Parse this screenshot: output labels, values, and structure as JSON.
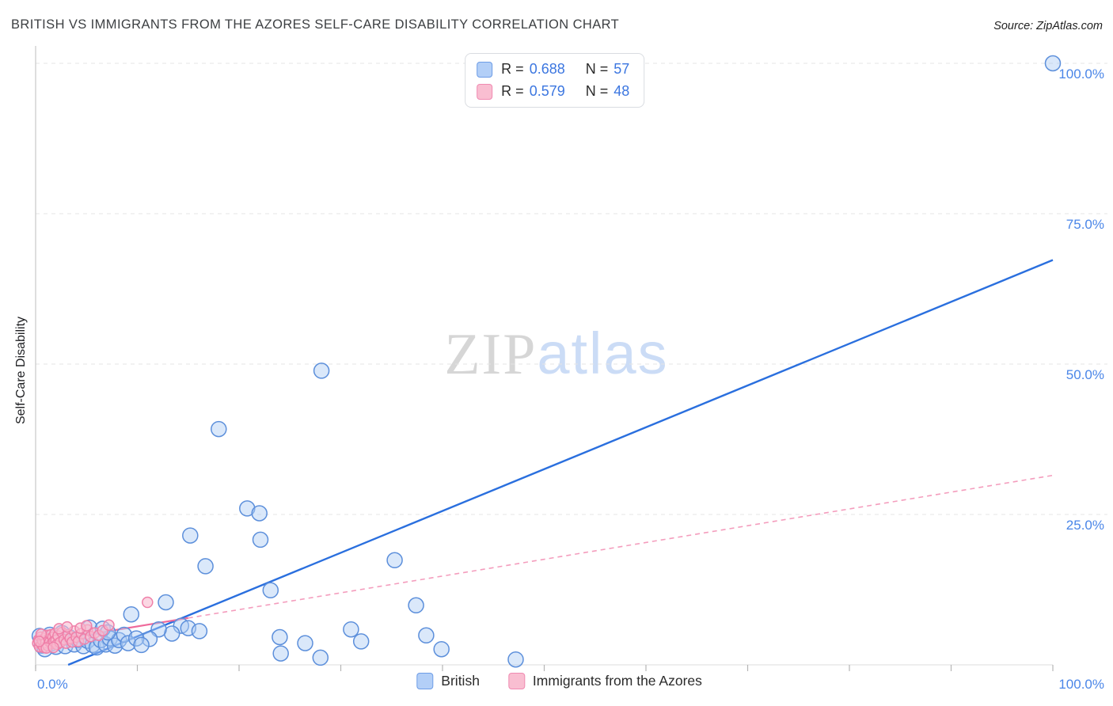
{
  "header": {
    "title": "BRITISH VS IMMIGRANTS FROM THE AZORES SELF-CARE DISABILITY CORRELATION CHART",
    "source": "Source: ZipAtlas.com"
  },
  "watermark": {
    "part1": "ZIP",
    "part2": "atlas"
  },
  "axes": {
    "y_title": "Self-Care Disability"
  },
  "legend_box": {
    "rows": [
      {
        "series": "British",
        "r_label": "R =",
        "r_value": "0.688",
        "n_label": "N =",
        "n_value": "57"
      },
      {
        "series": "Immigrants from the Azores",
        "r_label": "R =",
        "r_value": "0.579",
        "n_label": "N =",
        "n_value": "48"
      }
    ]
  },
  "bottom_legend": {
    "items": [
      {
        "label": "British"
      },
      {
        "label": "Immigrants from the Azores"
      }
    ]
  },
  "colors": {
    "accent_blue": "#3b76e0",
    "tick_blue": "#4a86e8",
    "british_fill": "#aecbf4",
    "british_stroke": "#5c8fdb",
    "british_line": "#2a6fde",
    "azores_fill": "#f9bcd0",
    "azores_stroke": "#ef7fa8",
    "azores_line": "#ef6a9b"
  },
  "chart_data": {
    "type": "scatter",
    "title": "BRITISH VS IMMIGRANTS FROM THE AZORES SELF-CARE DISABILITY CORRELATION CHART",
    "xlabel": "",
    "ylabel": "Self-Care Disability",
    "xlim": [
      0,
      100
    ],
    "ylim": [
      0,
      100
    ],
    "grid": true,
    "legend_position": "bottom",
    "x_tick_labels": [
      "0.0%",
      "100.0%"
    ],
    "y_tick_values": [
      25,
      50,
      75,
      100
    ],
    "y_tick_labels": [
      "25.0%",
      "50.0%",
      "75.0%",
      "100.0%"
    ],
    "series": [
      {
        "name": "British",
        "R": 0.688,
        "N": 57,
        "fill": "#aecbf4",
        "stroke": "#5c8fdb",
        "fill_opacity": 0.45,
        "radius": 9.5,
        "trend": {
          "x1": 3.2,
          "y1": 0,
          "x2": 100,
          "y2": 67.3,
          "dashed": false,
          "color": "#2a6fde",
          "width": 2.4
        },
        "points": [
          [
            100,
            100
          ],
          [
            28.1,
            48.9
          ],
          [
            18.0,
            39.2
          ],
          [
            20.8,
            26.0
          ],
          [
            22.0,
            25.2
          ],
          [
            15.2,
            21.5
          ],
          [
            22.1,
            20.8
          ],
          [
            16.7,
            16.4
          ],
          [
            35.3,
            17.4
          ],
          [
            23.1,
            12.4
          ],
          [
            37.4,
            9.9
          ],
          [
            12.8,
            10.4
          ],
          [
            9.4,
            8.4
          ],
          [
            31.0,
            5.9
          ],
          [
            32.0,
            3.9
          ],
          [
            38.4,
            4.9
          ],
          [
            39.9,
            2.6
          ],
          [
            24.0,
            4.6
          ],
          [
            26.5,
            3.6
          ],
          [
            47.2,
            0.9
          ],
          [
            28.0,
            1.2
          ],
          [
            24.1,
            1.9
          ],
          [
            14.3,
            6.5
          ],
          [
            15.0,
            6.1
          ],
          [
            16.1,
            5.6
          ],
          [
            13.4,
            5.2
          ],
          [
            12.1,
            5.9
          ],
          [
            11.2,
            4.3
          ],
          [
            0.4,
            4.8
          ],
          [
            0.6,
            3.2
          ],
          [
            0.9,
            2.6
          ],
          [
            1.2,
            4.1
          ],
          [
            1.6,
            3.6
          ],
          [
            2.0,
            3.0
          ],
          [
            2.4,
            4.2
          ],
          [
            2.9,
            3.1
          ],
          [
            3.3,
            4.6
          ],
          [
            3.8,
            3.4
          ],
          [
            4.2,
            4.1
          ],
          [
            4.7,
            3.1
          ],
          [
            5.1,
            4.0
          ],
          [
            5.6,
            3.3
          ],
          [
            6.0,
            2.9
          ],
          [
            6.4,
            4.1
          ],
          [
            6.9,
            3.4
          ],
          [
            7.3,
            4.4
          ],
          [
            7.8,
            3.2
          ],
          [
            8.2,
            4.1
          ],
          [
            8.7,
            5.0
          ],
          [
            9.1,
            3.6
          ],
          [
            9.9,
            4.4
          ],
          [
            10.4,
            3.3
          ],
          [
            5.3,
            6.2
          ],
          [
            6.6,
            6.0
          ],
          [
            7.1,
            5.4
          ],
          [
            2.6,
            5.3
          ],
          [
            1.4,
            5.0
          ]
        ]
      },
      {
        "name": "Immigrants from the Azores",
        "R": 0.579,
        "N": 48,
        "fill": "#f9bcd0",
        "stroke": "#ef7fa8",
        "fill_opacity": 0.6,
        "radius": 6.5,
        "trend": {
          "x1": 0,
          "y1": 3.6,
          "x2": 100,
          "y2": 31.5,
          "dashed": true,
          "solid_until_x": 15,
          "color": "#ef6a9b",
          "width": 1.6
        },
        "points": [
          [
            0.2,
            3.6
          ],
          [
            0.3,
            4.2
          ],
          [
            0.4,
            3.0
          ],
          [
            0.5,
            4.6
          ],
          [
            0.6,
            3.4
          ],
          [
            0.7,
            4.0
          ],
          [
            0.8,
            2.9
          ],
          [
            0.9,
            4.4
          ],
          [
            1.0,
            3.7
          ],
          [
            1.1,
            4.9
          ],
          [
            1.2,
            3.2
          ],
          [
            1.3,
            4.3
          ],
          [
            1.4,
            3.8
          ],
          [
            1.5,
            5.0
          ],
          [
            1.6,
            3.5
          ],
          [
            1.7,
            4.6
          ],
          [
            1.8,
            3.9
          ],
          [
            1.9,
            5.2
          ],
          [
            2.0,
            4.1
          ],
          [
            2.1,
            3.4
          ],
          [
            2.2,
            4.8
          ],
          [
            2.4,
            3.7
          ],
          [
            2.6,
            5.4
          ],
          [
            2.8,
            4.2
          ],
          [
            3.0,
            3.6
          ],
          [
            3.2,
            5.0
          ],
          [
            3.4,
            4.4
          ],
          [
            3.6,
            3.8
          ],
          [
            3.8,
            5.6
          ],
          [
            4.0,
            4.6
          ],
          [
            4.2,
            3.9
          ],
          [
            4.5,
            5.2
          ],
          [
            4.8,
            4.3
          ],
          [
            5.1,
            5.8
          ],
          [
            5.4,
            4.7
          ],
          [
            5.8,
            5.3
          ],
          [
            6.2,
            4.9
          ],
          [
            6.6,
            5.7
          ],
          [
            1.05,
            2.8
          ],
          [
            0.55,
            5.1
          ],
          [
            2.3,
            6.0
          ],
          [
            3.1,
            6.3
          ],
          [
            4.4,
            6.1
          ],
          [
            5.0,
            6.5
          ],
          [
            0.35,
            3.9
          ],
          [
            1.75,
            2.9
          ],
          [
            7.2,
            6.6
          ],
          [
            11.0,
            10.4
          ]
        ]
      }
    ]
  }
}
